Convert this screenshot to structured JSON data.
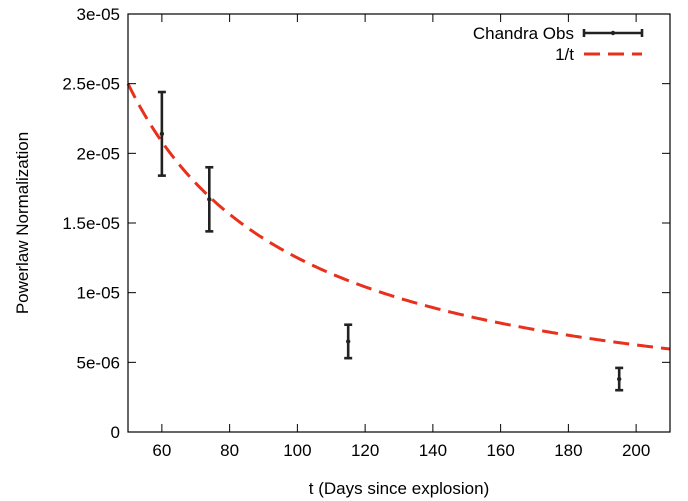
{
  "chart_data": {
    "type": "scatter",
    "title": "",
    "xlabel": "t (Days since explosion)",
    "ylabel": "Powerlaw Normalization",
    "xlim": [
      50,
      210
    ],
    "ylim": [
      0,
      3e-05
    ],
    "x_ticks": [
      60,
      80,
      100,
      120,
      140,
      160,
      180,
      200
    ],
    "x_tick_labels": [
      "60",
      "80",
      "100",
      "120",
      "140",
      "160",
      "180",
      "200"
    ],
    "y_ticks": [
      0,
      5e-06,
      1e-05,
      1.5e-05,
      2e-05,
      2.5e-05,
      3e-05
    ],
    "y_tick_labels": [
      "0",
      "5e-06",
      "1e-05",
      "1.5e-05",
      "2e-05",
      "2.5e-05",
      "3e-05"
    ],
    "grid": false,
    "legend_position": "top-right",
    "series": [
      {
        "name": "Chandra Obs",
        "kind": "errorbar",
        "color": "#222222",
        "points": [
          {
            "x": 60,
            "y": 2.14e-05,
            "ylow": 1.84e-05,
            "yhigh": 2.44e-05
          },
          {
            "x": 74,
            "y": 1.67e-05,
            "ylow": 1.44e-05,
            "yhigh": 1.9e-05
          },
          {
            "x": 115,
            "y": 6.5e-06,
            "ylow": 5.3e-06,
            "yhigh": 7.7e-06
          },
          {
            "x": 195,
            "y": 3.8e-06,
            "ylow": 3e-06,
            "yhigh": 4.6e-06
          }
        ]
      },
      {
        "name": "1/t",
        "kind": "dashed-line",
        "color": "#e8301c",
        "function": "A/t",
        "A": 0.00125
      }
    ]
  }
}
